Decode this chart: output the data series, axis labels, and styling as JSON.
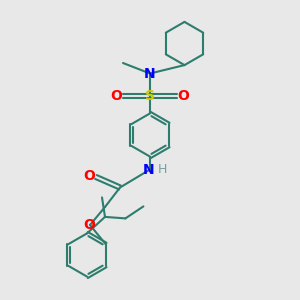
{
  "bg_color": "#e8e8e8",
  "bond_color": "#2d7d6e",
  "S_color": "#cccc00",
  "O_color": "#ff0000",
  "N_color": "#0000ff",
  "H_color": "#7a9ea0",
  "line_width": 1.5,
  "figsize": [
    3.0,
    3.0
  ],
  "dpi": 100,
  "xlim": [
    0,
    10
  ],
  "ylim": [
    0,
    10
  ]
}
